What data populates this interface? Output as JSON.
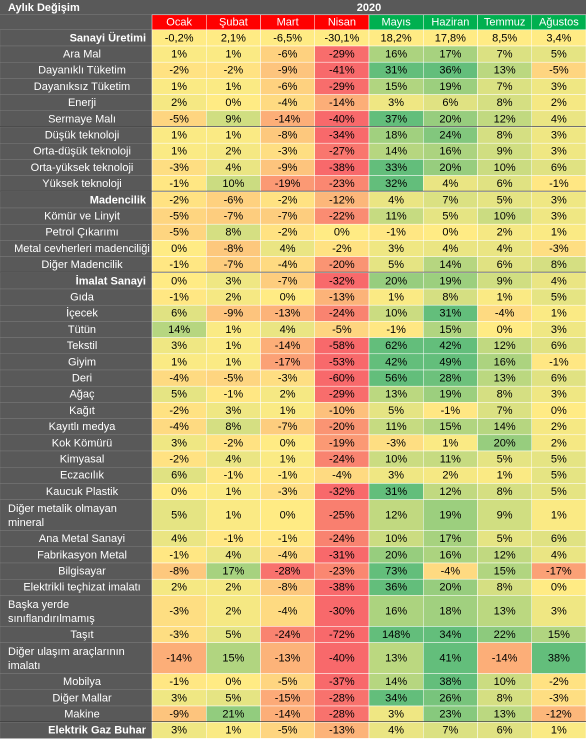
{
  "chart_data": {
    "type": "heatmap",
    "title": "Aylık Değişim",
    "year": "2020",
    "columns": [
      "Ocak",
      "Şubat",
      "Mart",
      "Nisan",
      "Mayıs",
      "Haziran",
      "Temmuz",
      "Ağustos"
    ],
    "value_scale": {
      "min": -30,
      "max": 30,
      "unit": "%"
    },
    "colors": {
      "low": "#f8696b",
      "mid": "#ffeb84",
      "high": "#63be7b",
      "header_bg": "#595959",
      "header_red": "#ff0000",
      "header_green": "#00b050"
    },
    "rows": [
      {
        "label": "Sanayi Üretimi",
        "bold": true,
        "values": [
          "-0,2%",
          "2,1%",
          "-6,5%",
          "-30,1%",
          "18,2%",
          "17,8%",
          "8,5%",
          "3,4%"
        ]
      },
      {
        "label": "Ara Mal",
        "values": [
          "1%",
          "1%",
          "-6%",
          "-29%",
          "16%",
          "17%",
          "7%",
          "5%"
        ]
      },
      {
        "label": "Dayanıklı Tüketim",
        "values": [
          "-2%",
          "-2%",
          "-9%",
          "-41%",
          "31%",
          "36%",
          "13%",
          "-5%"
        ]
      },
      {
        "label": "Dayanıksız Tüketim",
        "values": [
          "1%",
          "1%",
          "-6%",
          "-29%",
          "15%",
          "19%",
          "7%",
          "3%"
        ]
      },
      {
        "label": "Enerji",
        "values": [
          "2%",
          "0%",
          "-4%",
          "-14%",
          "3%",
          "6%",
          "8%",
          "2%"
        ]
      },
      {
        "label": "Sermaye Malı",
        "values": [
          "-5%",
          "9%",
          "-14%",
          "-40%",
          "37%",
          "20%",
          "12%",
          "4%"
        ]
      },
      {
        "label": "Düşük teknoloji",
        "values": [
          "1%",
          "1%",
          "-8%",
          "-34%",
          "18%",
          "24%",
          "8%",
          "3%"
        ]
      },
      {
        "label": "Orta-düşük teknoloji",
        "values": [
          "1%",
          "2%",
          "-3%",
          "-27%",
          "14%",
          "16%",
          "9%",
          "3%"
        ]
      },
      {
        "label": "Orta-yüksek teknoloji",
        "values": [
          "-3%",
          "4%",
          "-9%",
          "-38%",
          "33%",
          "20%",
          "10%",
          "6%"
        ]
      },
      {
        "label": "Yüksek teknoloji",
        "values": [
          "-1%",
          "10%",
          "-19%",
          "-23%",
          "32%",
          "4%",
          "6%",
          "-1%"
        ]
      },
      {
        "label": "Madencilik",
        "bold": true,
        "values": [
          "-2%",
          "-6%",
          "-2%",
          "-12%",
          "4%",
          "7%",
          "5%",
          "3%"
        ]
      },
      {
        "label": "Kömür ve Linyit",
        "values": [
          "-5%",
          "-7%",
          "-7%",
          "-22%",
          "11%",
          "5%",
          "10%",
          "3%"
        ]
      },
      {
        "label": "Petrol Çıkarımı",
        "values": [
          "-5%",
          "8%",
          "-2%",
          "0%",
          "-1%",
          "0%",
          "2%",
          "1%"
        ]
      },
      {
        "label": "Metal cevherleri madenciliği",
        "values": [
          "0%",
          "-8%",
          "4%",
          "-2%",
          "3%",
          "4%",
          "4%",
          "-3%"
        ]
      },
      {
        "label": "Diğer Madencilik",
        "values": [
          "-1%",
          "-7%",
          "-4%",
          "-20%",
          "5%",
          "14%",
          "6%",
          "8%"
        ]
      },
      {
        "label": "İmalat Sanayi",
        "bold": true,
        "values": [
          "0%",
          "3%",
          "-7%",
          "-32%",
          "20%",
          "19%",
          "9%",
          "4%"
        ]
      },
      {
        "label": "Gıda",
        "values": [
          "-1%",
          "2%",
          "0%",
          "-13%",
          "1%",
          "8%",
          "1%",
          "5%"
        ]
      },
      {
        "label": "İçecek",
        "values": [
          "6%",
          "-9%",
          "-13%",
          "-24%",
          "10%",
          "31%",
          "-4%",
          "1%"
        ]
      },
      {
        "label": "Tütün",
        "values": [
          "14%",
          "1%",
          "4%",
          "-5%",
          "-1%",
          "15%",
          "0%",
          "3%"
        ]
      },
      {
        "label": "Tekstil",
        "values": [
          "3%",
          "1%",
          "-14%",
          "-58%",
          "62%",
          "42%",
          "12%",
          "6%"
        ]
      },
      {
        "label": "Giyim",
        "values": [
          "1%",
          "1%",
          "-17%",
          "-53%",
          "42%",
          "49%",
          "16%",
          "-1%"
        ]
      },
      {
        "label": "Deri",
        "values": [
          "-4%",
          "-5%",
          "-3%",
          "-60%",
          "56%",
          "28%",
          "13%",
          "6%"
        ]
      },
      {
        "label": "Ağaç",
        "values": [
          "5%",
          "-1%",
          "2%",
          "-29%",
          "13%",
          "19%",
          "8%",
          "3%"
        ]
      },
      {
        "label": "Kağıt",
        "values": [
          "-2%",
          "3%",
          "1%",
          "-10%",
          "5%",
          "-1%",
          "7%",
          "0%"
        ]
      },
      {
        "label": "Kayıtlı medya",
        "values": [
          "-4%",
          "8%",
          "-7%",
          "-20%",
          "11%",
          "15%",
          "14%",
          "2%"
        ]
      },
      {
        "label": "Kok Kömürü",
        "values": [
          "3%",
          "-2%",
          "0%",
          "-19%",
          "-3%",
          "1%",
          "20%",
          "2%"
        ]
      },
      {
        "label": "Kimyasal",
        "values": [
          "-2%",
          "4%",
          "1%",
          "-24%",
          "10%",
          "11%",
          "5%",
          "5%"
        ]
      },
      {
        "label": "Eczacılık",
        "values": [
          "6%",
          "-1%",
          "-1%",
          "-4%",
          "3%",
          "2%",
          "1%",
          "5%"
        ]
      },
      {
        "label": "Kaucuk Plastik",
        "values": [
          "0%",
          "1%",
          "-3%",
          "-32%",
          "31%",
          "12%",
          "8%",
          "5%"
        ]
      },
      {
        "label": "Diğer metalik olmayan mineral",
        "tall": true,
        "values": [
          "5%",
          "1%",
          "0%",
          "-25%",
          "12%",
          "19%",
          "9%",
          "1%"
        ]
      },
      {
        "label": "Ana Metal Sanayi",
        "values": [
          "4%",
          "-1%",
          "-1%",
          "-24%",
          "10%",
          "17%",
          "5%",
          "6%"
        ]
      },
      {
        "label": "Fabrikasyon Metal",
        "values": [
          "-1%",
          "4%",
          "-4%",
          "-31%",
          "20%",
          "16%",
          "12%",
          "4%"
        ]
      },
      {
        "label": "Bilgisayar",
        "values": [
          "-8%",
          "17%",
          "-28%",
          "-23%",
          "73%",
          "-4%",
          "15%",
          "-17%"
        ]
      },
      {
        "label": "Elektrikli teçhizat imalatı",
        "values": [
          "2%",
          "2%",
          "-8%",
          "-38%",
          "36%",
          "20%",
          "8%",
          "0%"
        ]
      },
      {
        "label": "Başka yerde sınıflandırılmamış",
        "tall": true,
        "values": [
          "-3%",
          "2%",
          "-4%",
          "-30%",
          "16%",
          "18%",
          "13%",
          "3%"
        ]
      },
      {
        "label": "Taşıt",
        "values": [
          "-3%",
          "5%",
          "-24%",
          "-72%",
          "148%",
          "34%",
          "22%",
          "15%"
        ]
      },
      {
        "label": "Diğer ulaşım araçlarının imalatı",
        "tall": true,
        "values": [
          "-14%",
          "15%",
          "-13%",
          "-40%",
          "13%",
          "41%",
          "-14%",
          "38%"
        ]
      },
      {
        "label": "Mobilya",
        "values": [
          "-1%",
          "0%",
          "-5%",
          "-37%",
          "14%",
          "38%",
          "10%",
          "-2%"
        ]
      },
      {
        "label": "Diğer Mallar",
        "values": [
          "3%",
          "5%",
          "-15%",
          "-28%",
          "34%",
          "26%",
          "8%",
          "-3%"
        ]
      },
      {
        "label": "Makine",
        "values": [
          "-9%",
          "21%",
          "-14%",
          "-28%",
          "3%",
          "23%",
          "13%",
          "-12%"
        ]
      },
      {
        "label": "Elektrik Gaz Buhar",
        "bold": true,
        "values": [
          "3%",
          "1%",
          "-5%",
          "-13%",
          "4%",
          "7%",
          "6%",
          "1%"
        ]
      }
    ]
  }
}
